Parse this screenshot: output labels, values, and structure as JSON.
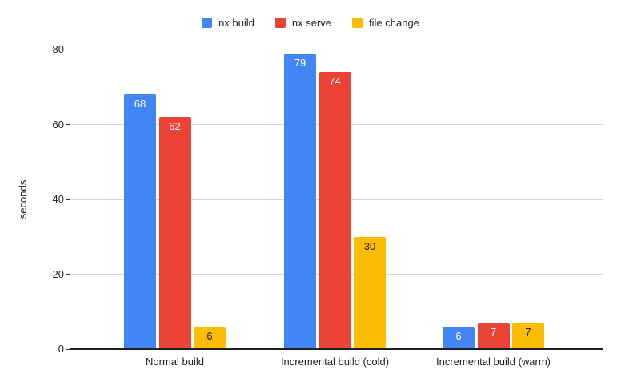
{
  "chart_data": {
    "type": "bar",
    "title": "",
    "categories": [
      "Normal build",
      "Incremental build (cold)",
      "Incremental build (warm)"
    ],
    "series": [
      {
        "name": "nx build",
        "color": "#4285F4",
        "label_color": "#ffffff",
        "values": [
          68,
          79,
          6
        ]
      },
      {
        "name": "nx serve",
        "color": "#EA4335",
        "label_color": "#ffffff",
        "values": [
          62,
          74,
          7
        ]
      },
      {
        "name": "file change",
        "color": "#FBBC04",
        "label_color": "#1a1a1a",
        "values": [
          6,
          30,
          7
        ]
      }
    ],
    "xlabel": "",
    "ylabel": "seconds",
    "ylim": [
      0,
      80
    ],
    "yticks": [
      0,
      20,
      40,
      60,
      80
    ],
    "grid": "horizontal",
    "legend_position": "top",
    "background_color": "#ffffff",
    "gridline_color": "#d6d6d6",
    "axis_line_color": "#212121",
    "text_color": "#1f1f1f"
  }
}
